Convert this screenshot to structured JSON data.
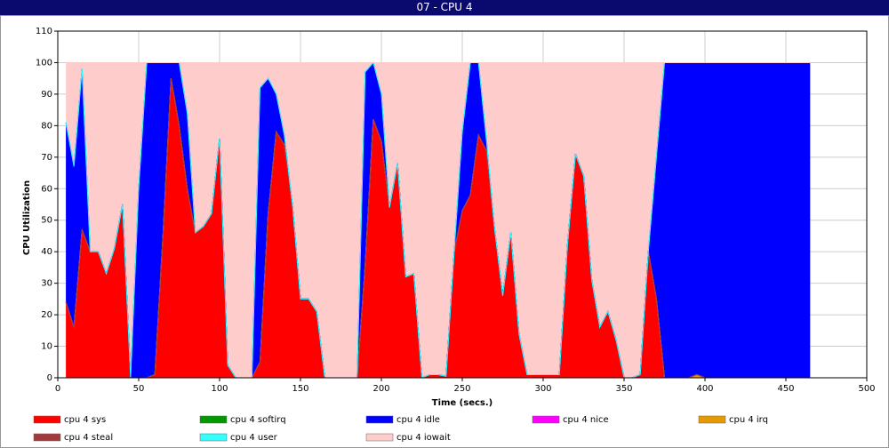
{
  "window_title": "07 - CPU 4",
  "chart_data": {
    "type": "stacked_area",
    "ylabel": "CPU Utilization",
    "xlabel": "Time (secs.)",
    "xlim": [
      0,
      500
    ],
    "xticks": [
      0,
      50,
      100,
      150,
      200,
      250,
      300,
      350,
      400,
      450,
      500
    ],
    "ylim": [
      0,
      110
    ],
    "yticks": [
      0,
      10,
      20,
      30,
      40,
      50,
      60,
      70,
      80,
      90,
      100,
      110
    ],
    "grid": true,
    "legend": "bottom",
    "x": [
      5,
      10,
      15,
      20,
      25,
      30,
      35,
      40,
      45,
      50,
      55,
      60,
      65,
      70,
      75,
      80,
      85,
      90,
      95,
      100,
      105,
      110,
      115,
      120,
      125,
      130,
      135,
      140,
      145,
      150,
      155,
      160,
      165,
      170,
      175,
      180,
      185,
      190,
      195,
      200,
      205,
      210,
      215,
      220,
      225,
      230,
      235,
      240,
      245,
      250,
      255,
      260,
      265,
      270,
      275,
      280,
      285,
      290,
      295,
      300,
      305,
      310,
      315,
      320,
      325,
      330,
      335,
      340,
      345,
      350,
      355,
      360,
      365,
      370,
      375,
      390,
      395,
      400,
      465
    ],
    "series": [
      {
        "name": "cpu 4 sys",
        "color": "#ff0000",
        "values": [
          24,
          16,
          47,
          40,
          40,
          33,
          41,
          55,
          0,
          0,
          0,
          1,
          45,
          95,
          80,
          60,
          46,
          48,
          52,
          76,
          4,
          0,
          0,
          0,
          5,
          52,
          78,
          74,
          55,
          25,
          25,
          21,
          0,
          0,
          0,
          0,
          0,
          36,
          82,
          75,
          54,
          68,
          32,
          33,
          0,
          1,
          1,
          0.5,
          40,
          53,
          58,
          77,
          72,
          47,
          26,
          46,
          14,
          1,
          1,
          1,
          1,
          1,
          42,
          71,
          64,
          31,
          16,
          21,
          12,
          0,
          0,
          1,
          40,
          25,
          0,
          0,
          0,
          0,
          0
        ]
      },
      {
        "name": "cpu 4 softirq",
        "color": "#009900",
        "values": [
          0,
          0,
          0,
          0,
          0,
          0,
          0,
          0,
          0,
          0,
          0,
          0,
          0,
          0,
          0,
          0,
          0,
          0,
          0,
          0,
          0,
          0,
          0,
          0,
          0,
          0,
          0,
          0,
          0,
          0,
          0,
          0,
          0,
          0,
          0,
          0,
          0,
          0,
          0,
          0,
          0,
          0,
          0,
          0,
          0,
          0,
          0,
          0,
          0,
          0,
          0,
          0,
          0,
          0,
          0,
          0,
          0,
          0,
          0,
          0,
          0,
          0,
          0,
          0,
          0,
          0,
          0,
          0,
          0,
          0,
          0,
          0,
          0,
          0,
          0,
          0,
          0,
          0,
          0
        ]
      },
      {
        "name": "cpu 4 idle",
        "color": "#0000ff",
        "values": [
          57,
          51,
          51,
          0,
          0,
          0,
          0,
          0,
          0,
          60,
          100,
          99,
          55,
          5,
          20,
          24,
          0,
          0,
          0,
          0,
          0,
          0,
          0,
          0,
          87,
          43,
          12,
          3,
          0,
          0,
          0,
          0,
          0,
          0,
          0,
          0,
          0,
          61,
          18,
          15,
          0,
          0,
          0,
          0,
          0,
          0,
          0,
          0,
          0,
          25,
          42,
          23,
          3,
          0,
          0,
          0,
          0,
          0,
          0,
          0,
          0,
          0,
          0,
          0,
          0,
          0,
          0,
          0,
          0,
          0,
          0,
          0,
          0,
          45,
          100,
          100,
          99,
          100,
          100
        ]
      },
      {
        "name": "cpu 4 nice",
        "color": "#ff00ff",
        "values": [
          0,
          0,
          0,
          0,
          0,
          0,
          0,
          0,
          0,
          0,
          0,
          0,
          0,
          0,
          0,
          0,
          0,
          0,
          0,
          0,
          0,
          0,
          0,
          0,
          0,
          0,
          0,
          0,
          0,
          0,
          0,
          0,
          0,
          0,
          0,
          0,
          0,
          0,
          0,
          0,
          0,
          0,
          0,
          0,
          0,
          0,
          0,
          0,
          0,
          0,
          0,
          0,
          0,
          0,
          0,
          0,
          0,
          0,
          0,
          0,
          0,
          0,
          0,
          0,
          0,
          0,
          0,
          0,
          0,
          0,
          0,
          0,
          0,
          0,
          0,
          0,
          0,
          0,
          0
        ]
      },
      {
        "name": "cpu 4 irq",
        "color": "#e69a00",
        "values": [
          0,
          0,
          0,
          0,
          0,
          0,
          0,
          0,
          0,
          0,
          0,
          0,
          0,
          0,
          0,
          0,
          0,
          0,
          0,
          0,
          0,
          0,
          0,
          0,
          0,
          0,
          0,
          0,
          0,
          0,
          0,
          0,
          0,
          0,
          0,
          0,
          0,
          0,
          0,
          0,
          0,
          0,
          0,
          0,
          0,
          0,
          0,
          0,
          0,
          0,
          0,
          0,
          0,
          0,
          0,
          0,
          0,
          0,
          0,
          0,
          0,
          0,
          0,
          0,
          0,
          0,
          0,
          0,
          0,
          0,
          0,
          0,
          0,
          0,
          0,
          0,
          1,
          0,
          0
        ]
      },
      {
        "name": "cpu 4 steal",
        "color": "#a33a3a",
        "values": [
          0,
          0,
          0,
          0,
          0,
          0,
          0,
          0,
          0,
          0,
          0,
          0,
          0,
          0,
          0,
          0,
          0,
          0,
          0,
          0,
          0,
          0,
          0,
          0,
          0,
          0,
          0,
          0,
          0,
          0,
          0,
          0,
          0,
          0,
          0,
          0,
          0,
          0,
          0,
          0,
          0,
          0,
          0,
          0,
          0,
          0,
          0,
          0,
          0,
          0,
          0,
          0,
          0,
          0,
          0,
          0,
          0,
          0,
          0,
          0,
          0,
          0,
          0,
          0,
          0,
          0,
          0,
          0,
          0,
          0,
          0,
          0,
          0,
          0,
          0,
          0,
          0,
          0,
          0
        ]
      },
      {
        "name": "cpu 4 user",
        "color": "#33ffff",
        "values": [
          0,
          0,
          0,
          0,
          0,
          0,
          0,
          0,
          0,
          0,
          0,
          0,
          0,
          0,
          0,
          0,
          0,
          0,
          0,
          0,
          0,
          0,
          0,
          0,
          0,
          0,
          0,
          0,
          0,
          0,
          0,
          0,
          0,
          0,
          0,
          0,
          0,
          0,
          0,
          0,
          0,
          0,
          0,
          0,
          0,
          0,
          0,
          0,
          0,
          0,
          0,
          0,
          0,
          0,
          0,
          0,
          0,
          0,
          0,
          0,
          0,
          0,
          0,
          0,
          0,
          0,
          0,
          0,
          0,
          0,
          0,
          0,
          0,
          0,
          0,
          0,
          0,
          0,
          0
        ]
      },
      {
        "name": "cpu 4 iowait",
        "color": "#ffcccc",
        "values": [
          19,
          33,
          2,
          60,
          60,
          67,
          59,
          45,
          100,
          40,
          0,
          0,
          0,
          0,
          0,
          16,
          54,
          52,
          48,
          24,
          96,
          100,
          100,
          100,
          8,
          5,
          10,
          23,
          45,
          75,
          75,
          79,
          100,
          100,
          100,
          100,
          100,
          3,
          0,
          10,
          46,
          32,
          68,
          67,
          100,
          99,
          99,
          99.5,
          60,
          22,
          0,
          0,
          25,
          53,
          74,
          54,
          86,
          99,
          99,
          99,
          99,
          99,
          58,
          29,
          36,
          69,
          84,
          79,
          88,
          100,
          100,
          99,
          60,
          30,
          0,
          0,
          0,
          0,
          0
        ]
      }
    ]
  }
}
